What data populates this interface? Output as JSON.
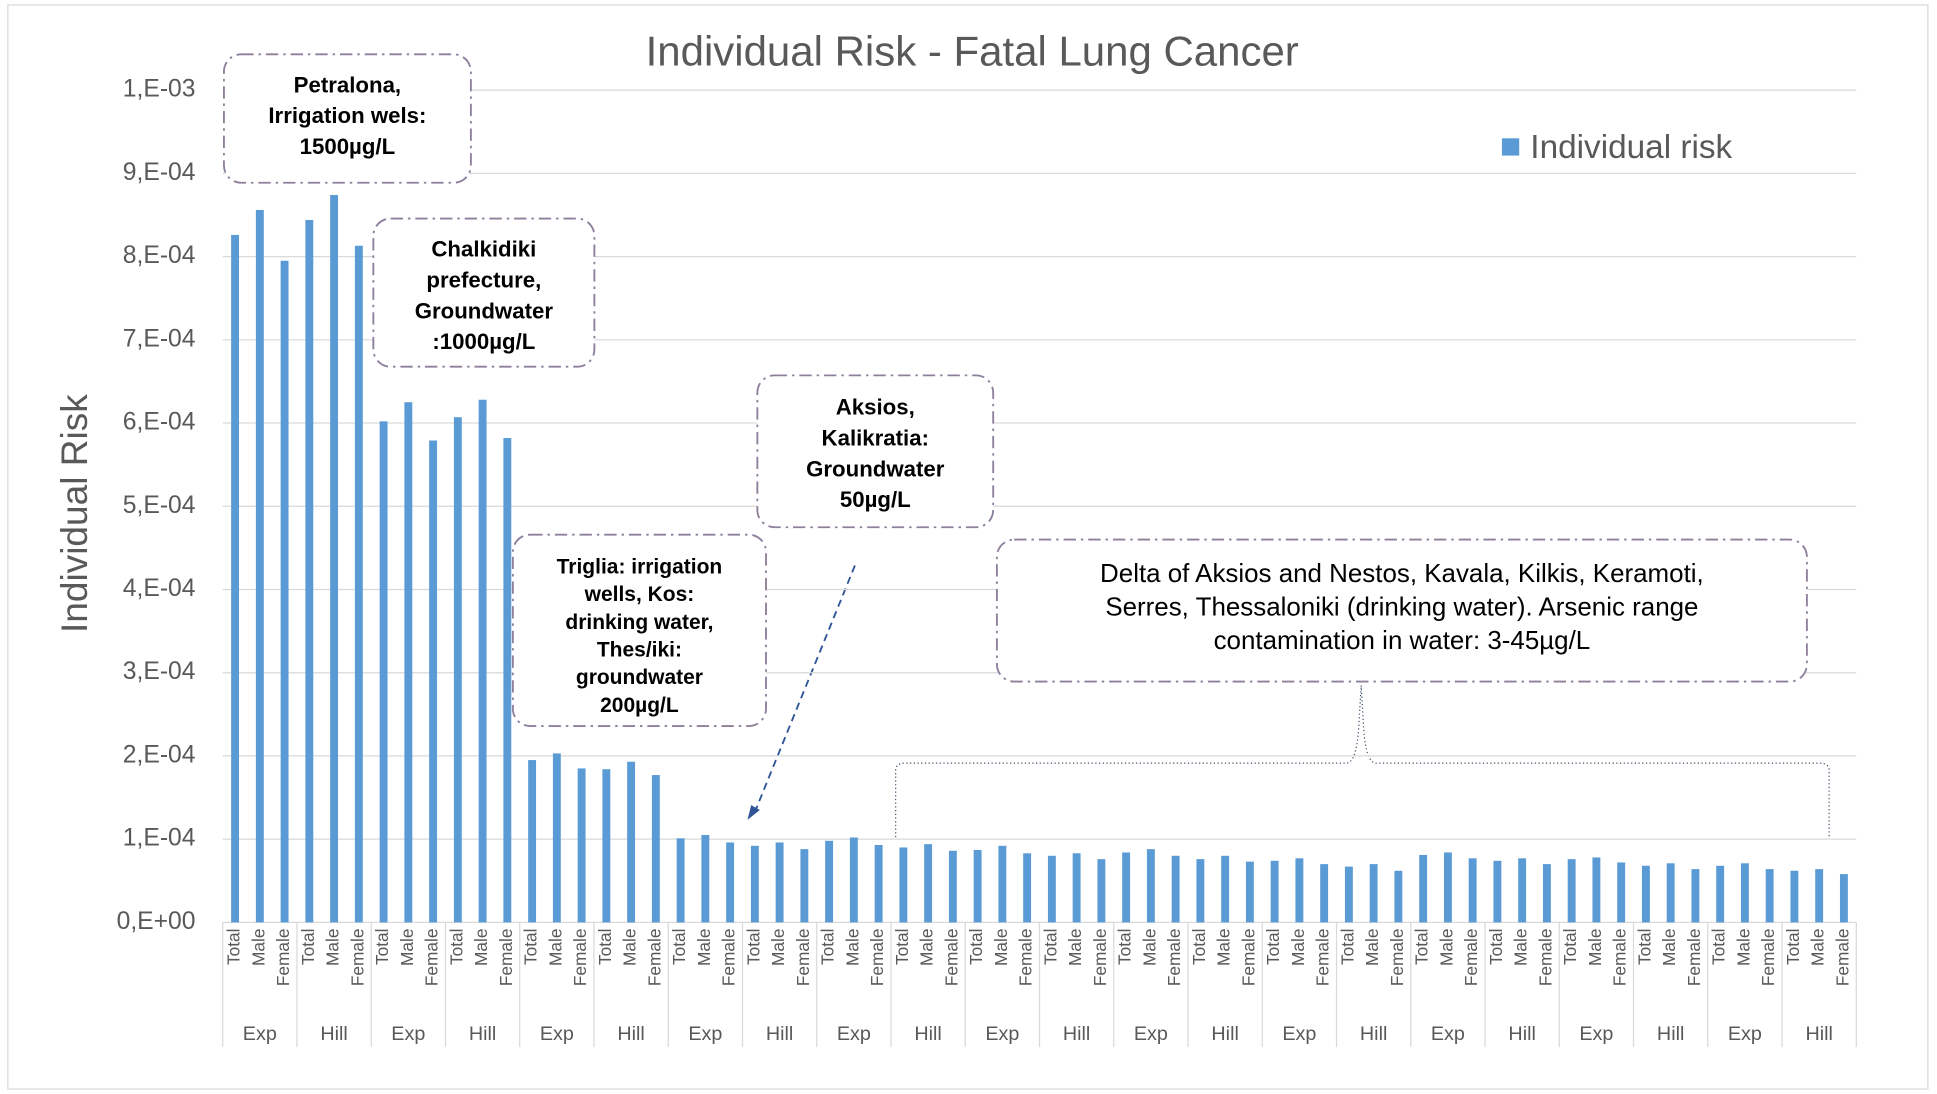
{
  "chart_data": {
    "type": "bar",
    "title": "Individual Risk - Fatal Lung Cancer",
    "y_label": "Individual Risk",
    "legend": "Individual risk",
    "legend_position": "top-right",
    "color": "#5b9bd5",
    "grid": true,
    "ylim": [
      0,
      0.001
    ],
    "yticks": [
      {
        "value": 0,
        "label": "0,E+00"
      },
      {
        "value": 0.0001,
        "label": "1,E-04"
      },
      {
        "value": 0.0002,
        "label": "2,E-04"
      },
      {
        "value": 0.0003,
        "label": "3,E-04"
      },
      {
        "value": 0.0004,
        "label": "4,E-04"
      },
      {
        "value": 0.0005,
        "label": "5,E-04"
      },
      {
        "value": 0.0006,
        "label": "6,E-04"
      },
      {
        "value": 0.0007,
        "label": "7,E-04"
      },
      {
        "value": 0.0008,
        "label": "8,E-04"
      },
      {
        "value": 0.0009,
        "label": "9,E-04"
      },
      {
        "value": 0.001,
        "label": "1,E-03"
      }
    ],
    "groups": [
      "Exp",
      "Hill",
      "Exp",
      "Hill",
      "Exp",
      "Hill",
      "Exp",
      "Hill",
      "Exp",
      "Hill",
      "Exp",
      "Hill",
      "Exp",
      "Hill",
      "Exp",
      "Hill",
      "Exp",
      "Hill",
      "Exp",
      "Hill",
      "Exp",
      "Hill"
    ],
    "categories": [
      "Total",
      "Male",
      "Female",
      "Total",
      "Male",
      "Female",
      "Total",
      "Male",
      "Female",
      "Total",
      "Male",
      "Female",
      "Total",
      "Male",
      "Female",
      "Total",
      "Male",
      "Female",
      "Total",
      "Male",
      "Female",
      "Total",
      "Male",
      "Female",
      "Total",
      "Male",
      "Female",
      "Total",
      "Male",
      "Female",
      "Total",
      "Male",
      "Female",
      "Total",
      "Male",
      "Female",
      "Total",
      "Male",
      "Female",
      "Total",
      "Male",
      "Female",
      "Total",
      "Male",
      "Female",
      "Total",
      "Male",
      "Female",
      "Total",
      "Male",
      "Female",
      "Total",
      "Male",
      "Female",
      "Total",
      "Male",
      "Female",
      "Total",
      "Male",
      "Female",
      "Total",
      "Male",
      "Female",
      "Total",
      "Male",
      "Female"
    ],
    "values": [
      0.000826,
      0.000856,
      0.000795,
      0.000844,
      0.000874,
      0.000813,
      0.000602,
      0.000625,
      0.000579,
      0.000607,
      0.000628,
      0.000582,
      0.000195,
      0.000203,
      0.000185,
      0.000184,
      0.000193,
      0.000177,
      0.000101,
      0.000105,
      9.6e-05,
      9.2e-05,
      9.6e-05,
      8.8e-05,
      9.8e-05,
      0.000102,
      9.3e-05,
      9e-05,
      9.4e-05,
      8.6e-05,
      8.7e-05,
      9.2e-05,
      8.3e-05,
      8e-05,
      8.3e-05,
      7.6e-05,
      8.4e-05,
      8.8e-05,
      8e-05,
      7.6e-05,
      8e-05,
      7.3e-05,
      7.4e-05,
      7.7e-05,
      7e-05,
      6.7e-05,
      7e-05,
      6.2e-05,
      8.1e-05,
      8.4e-05,
      7.7e-05,
      7.4e-05,
      7.7e-05,
      7e-05,
      7.6e-05,
      7.8e-05,
      7.2e-05,
      6.8e-05,
      7.1e-05,
      6.4e-05,
      6.8e-05,
      7.1e-05,
      6.4e-05,
      6.2e-05,
      6.4e-05,
      5.8e-05
    ],
    "annotations": [
      {
        "lines": [
          "Petralona,",
          "Irrigation wels:",
          "1500µg/L"
        ]
      },
      {
        "lines": [
          "Chalkidiki",
          "prefecture,",
          "Groundwater",
          ":1000µg/L"
        ]
      },
      {
        "lines": [
          "Triglia: irrigation",
          "wells, Kos:",
          "drinking water,",
          "Thes/iki:",
          "groundwater",
          "200µg/L"
        ]
      },
      {
        "lines": [
          "Aksios,",
          "Kalikratia:",
          "Groundwater",
          "50µg/L"
        ]
      },
      {
        "lines": [
          "Delta of Aksios and Nestos, Kavala, Kilkis, Keramoti,",
          "Serres, Thessaloniki (drinking water). Arsenic range",
          "contamination in water: 3-45µg/L"
        ]
      }
    ]
  }
}
